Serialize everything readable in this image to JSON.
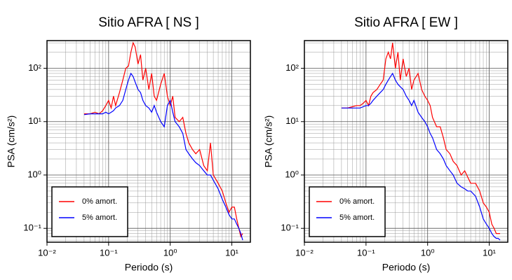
{
  "chart_data": [
    {
      "type": "line",
      "title": "Sitio AFRA [ NS ]",
      "xlabel": "Periodo (s)",
      "ylabel": "PSA (cm/s²)",
      "xscale": "log",
      "yscale": "log",
      "grid": true,
      "legend": "lower left",
      "xlim": [
        0.01,
        20
      ],
      "ylim": [
        0.055,
        330
      ],
      "xticks": [
        {
          "value": 0.01,
          "label": "10⁻²"
        },
        {
          "value": 0.1,
          "label": "10⁻¹"
        },
        {
          "value": 1,
          "label": "10⁰"
        },
        {
          "value": 10,
          "label": "10¹"
        }
      ],
      "yticks": [
        {
          "value": 0.1,
          "label": "10⁻¹"
        },
        {
          "value": 1,
          "label": "10⁰"
        },
        {
          "value": 10,
          "label": "10¹"
        },
        {
          "value": 100,
          "label": "10²"
        }
      ],
      "xminorticks": [
        0.02,
        0.03,
        0.04,
        0.05,
        0.06,
        0.07,
        0.08,
        0.09,
        0.2,
        0.3,
        0.4,
        0.5,
        0.6,
        0.7,
        0.8,
        0.9,
        2,
        3,
        4,
        5,
        6,
        7,
        8,
        9,
        20
      ],
      "yminorticks": [
        0.06,
        0.07,
        0.08,
        0.09,
        0.2,
        0.3,
        0.4,
        0.5,
        0.6,
        0.7,
        0.8,
        0.9,
        2,
        3,
        4,
        5,
        6,
        7,
        8,
        9,
        20,
        30,
        40,
        50,
        60,
        70,
        80,
        90,
        200,
        300
      ],
      "x": [
        0.04,
        0.05,
        0.06,
        0.07,
        0.08,
        0.09,
        0.1,
        0.11,
        0.12,
        0.13,
        0.15,
        0.17,
        0.19,
        0.21,
        0.23,
        0.25,
        0.27,
        0.3,
        0.33,
        0.36,
        0.4,
        0.45,
        0.5,
        0.55,
        0.6,
        0.7,
        0.8,
        0.9,
        1.0,
        1.1,
        1.2,
        1.4,
        1.6,
        1.8,
        2.0,
        2.3,
        2.6,
        3.0,
        3.5,
        4.0,
        4.5,
        5,
        6,
        7,
        8,
        9,
        10,
        11,
        12,
        13,
        14,
        15
      ],
      "series": [
        {
          "name": "0% amort.",
          "color": "#ff0000",
          "values": [
            14,
            14,
            15,
            14,
            16,
            20,
            25,
            18,
            30,
            20,
            35,
            60,
            100,
            110,
            200,
            300,
            250,
            120,
            180,
            60,
            100,
            40,
            80,
            30,
            25,
            50,
            80,
            30,
            20,
            30,
            12,
            10,
            12,
            6,
            4,
            3,
            2.5,
            3,
            1.5,
            1.2,
            4,
            1,
            0.7,
            0.5,
            0.3,
            0.2,
            0.25,
            0.25,
            0.15,
            0.1,
            0.07,
            0.08
          ]
        },
        {
          "name": "5% amort.",
          "color": "#0000ff",
          "values": [
            13.5,
            14,
            14,
            14,
            14,
            15,
            14,
            15,
            16,
            18,
            20,
            25,
            40,
            60,
            80,
            70,
            55,
            40,
            35,
            25,
            20,
            18,
            15,
            20,
            15,
            10,
            8,
            20,
            25,
            15,
            10,
            8,
            6,
            3,
            2.5,
            2,
            1.7,
            1.5,
            1.2,
            1.0,
            1.0,
            0.8,
            0.55,
            0.35,
            0.25,
            0.18,
            0.15,
            0.15,
            0.12,
            0.1,
            0.08,
            0.06
          ]
        }
      ]
    },
    {
      "type": "line",
      "title": "Sitio AFRA [ EW ]",
      "xlabel": "Periodo (s)",
      "ylabel": "PSA (cm/s²)",
      "xscale": "log",
      "yscale": "log",
      "grid": true,
      "legend": "lower left",
      "xlim": [
        0.01,
        20
      ],
      "ylim": [
        0.055,
        330
      ],
      "xticks": [
        {
          "value": 0.01,
          "label": "10⁻²"
        },
        {
          "value": 0.1,
          "label": "10⁻¹"
        },
        {
          "value": 1,
          "label": "10⁰"
        },
        {
          "value": 10,
          "label": "10¹"
        }
      ],
      "yticks": [
        {
          "value": 0.1,
          "label": "10⁻¹"
        },
        {
          "value": 1,
          "label": "10⁰"
        },
        {
          "value": 10,
          "label": "10¹"
        },
        {
          "value": 100,
          "label": "10²"
        }
      ],
      "xminorticks": [
        0.02,
        0.03,
        0.04,
        0.05,
        0.06,
        0.07,
        0.08,
        0.09,
        0.2,
        0.3,
        0.4,
        0.5,
        0.6,
        0.7,
        0.8,
        0.9,
        2,
        3,
        4,
        5,
        6,
        7,
        8,
        9,
        20
      ],
      "yminorticks": [
        0.06,
        0.07,
        0.08,
        0.09,
        0.2,
        0.3,
        0.4,
        0.5,
        0.6,
        0.7,
        0.8,
        0.9,
        2,
        3,
        4,
        5,
        6,
        7,
        8,
        9,
        20,
        30,
        40,
        50,
        60,
        70,
        80,
        90,
        200,
        300
      ],
      "x": [
        0.04,
        0.05,
        0.06,
        0.07,
        0.08,
        0.09,
        0.1,
        0.11,
        0.12,
        0.13,
        0.15,
        0.17,
        0.19,
        0.21,
        0.23,
        0.25,
        0.27,
        0.3,
        0.33,
        0.36,
        0.4,
        0.45,
        0.5,
        0.55,
        0.6,
        0.7,
        0.8,
        0.9,
        1.0,
        1.1,
        1.2,
        1.4,
        1.6,
        1.8,
        2.0,
        2.3,
        2.6,
        3.0,
        3.5,
        4.0,
        4.5,
        5,
        6,
        7,
        8,
        9,
        10,
        11,
        12,
        13,
        14,
        15
      ],
      "series": [
        {
          "name": "0% amort.",
          "color": "#ff0000",
          "values": [
            18,
            18,
            19,
            20,
            20,
            22,
            25,
            20,
            30,
            35,
            40,
            50,
            60,
            150,
            200,
            150,
            300,
            100,
            200,
            60,
            150,
            70,
            100,
            40,
            60,
            80,
            40,
            30,
            25,
            20,
            12,
            8,
            8,
            5,
            3,
            2.5,
            1.8,
            1.5,
            1.0,
            1.2,
            0.9,
            0.7,
            0.7,
            0.5,
            0.3,
            0.25,
            0.2,
            0.12,
            0.1,
            0.08,
            0.08,
            0.08
          ]
        },
        {
          "name": "5% amort.",
          "color": "#0000ff",
          "values": [
            18,
            18,
            18,
            18,
            18,
            19,
            20,
            20,
            22,
            25,
            30,
            35,
            40,
            50,
            60,
            70,
            80,
            60,
            50,
            45,
            40,
            30,
            25,
            20,
            25,
            15,
            12,
            10,
            8,
            6,
            5,
            3,
            2.5,
            2,
            1.5,
            1.2,
            1.0,
            0.7,
            0.6,
            0.55,
            0.5,
            0.5,
            0.4,
            0.25,
            0.15,
            0.12,
            0.1,
            0.08,
            0.07,
            0.065,
            0.065,
            0.06
          ]
        }
      ]
    }
  ]
}
